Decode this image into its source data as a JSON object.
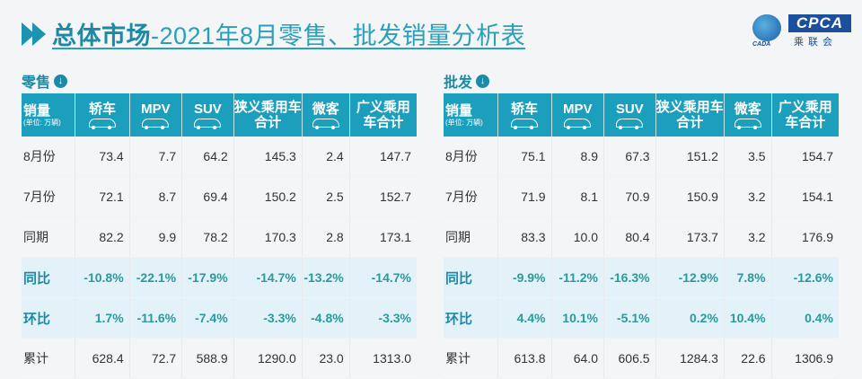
{
  "header": {
    "title_bold": "总体市场",
    "title_rest": "-2021年8月零售、批发销量分析表",
    "logo": {
      "abbr": "CPCA",
      "cn": "乘联会",
      "small": "CADA"
    }
  },
  "columns": {
    "row_header": "销量",
    "unit": "(单位: 万辆)",
    "cols": [
      "轿车",
      "MPV",
      "SUV",
      "狭义乘用车合计",
      "微客",
      "广义乘用车合计"
    ]
  },
  "retail": {
    "label": "零售",
    "icon": "arrow-down-circle-icon",
    "rows": [
      {
        "label": "8月份",
        "values": [
          "73.4",
          "7.7",
          "64.2",
          "145.3",
          "2.4",
          "147.7"
        ]
      },
      {
        "label": "7月份",
        "values": [
          "72.1",
          "8.7",
          "69.4",
          "150.2",
          "2.5",
          "152.7"
        ]
      },
      {
        "label": "同期",
        "values": [
          "82.2",
          "9.9",
          "78.2",
          "170.3",
          "2.8",
          "173.1"
        ]
      },
      {
        "label": "同比",
        "values": [
          "-10.8%",
          "-22.1%",
          "-17.9%",
          "-14.7%",
          "-13.2%",
          "-14.7%"
        ]
      },
      {
        "label": "环比",
        "values": [
          "1.7%",
          "-11.6%",
          "-7.4%",
          "-3.3%",
          "-4.8%",
          "-3.3%"
        ]
      },
      {
        "label": "累计",
        "values": [
          "628.4",
          "72.7",
          "588.9",
          "1290.0",
          "23.0",
          "1313.0"
        ]
      }
    ]
  },
  "wholesale": {
    "label": "批发",
    "icon": "arrow-down-circle-icon",
    "rows": [
      {
        "label": "8月份",
        "values": [
          "75.1",
          "8.9",
          "67.3",
          "151.2",
          "3.5",
          "154.7"
        ]
      },
      {
        "label": "7月份",
        "values": [
          "71.9",
          "8.1",
          "70.9",
          "150.9",
          "3.2",
          "154.1"
        ]
      },
      {
        "label": "同期",
        "values": [
          "83.3",
          "10.0",
          "80.4",
          "173.7",
          "3.2",
          "176.9"
        ]
      },
      {
        "label": "同比",
        "values": [
          "-9.9%",
          "-11.2%",
          "-16.3%",
          "-12.9%",
          "7.8%",
          "-12.6%"
        ]
      },
      {
        "label": "环比",
        "values": [
          "4.4%",
          "10.1%",
          "-5.1%",
          "0.2%",
          "10.4%",
          "0.4%"
        ]
      },
      {
        "label": "累计",
        "values": [
          "613.8",
          "64.0",
          "606.5",
          "1284.3",
          "22.6",
          "1306.9"
        ]
      }
    ]
  },
  "colors": {
    "accent": "#1c9fbd",
    "title": "#2a9fba",
    "pct": "#2a9a9c",
    "logo": "#1c4f9c"
  }
}
